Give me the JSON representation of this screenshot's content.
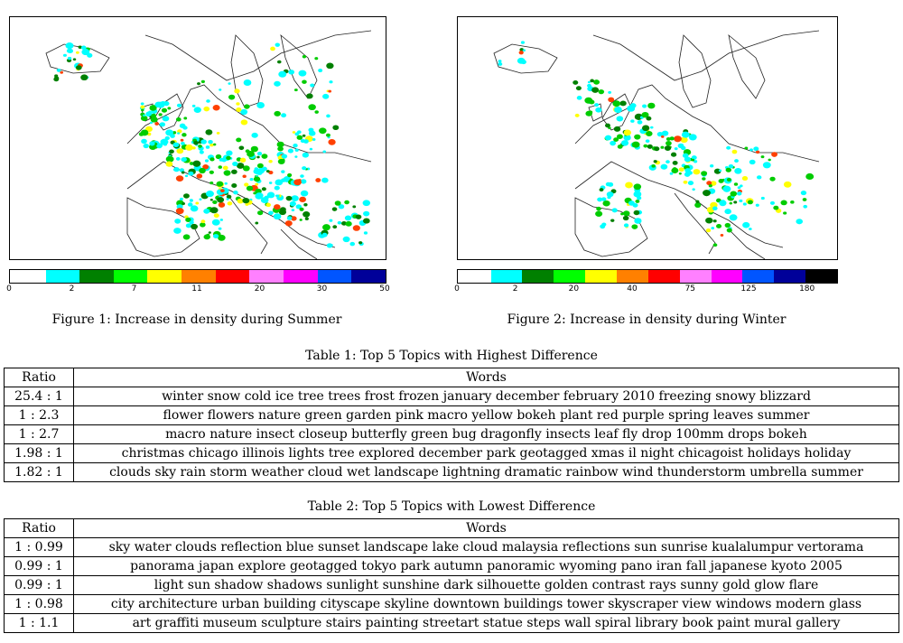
{
  "figures": [
    {
      "caption": "Figure 1: Increase in density during Summer",
      "colorbar": {
        "colors": [
          "#ffffff",
          "#00ffff",
          "#008000",
          "#00ff00",
          "#ffff00",
          "#ff8000",
          "#ff0000",
          "#ff80ff",
          "#ff00ff",
          "#0055ff",
          "#000099"
        ],
        "ticks": [
          "0",
          "2",
          "7",
          "11",
          "20",
          "30",
          "50"
        ]
      }
    },
    {
      "caption": "Figure 2: Increase in density during Winter",
      "colorbar": {
        "colors": [
          "#ffffff",
          "#00ffff",
          "#008000",
          "#00ff00",
          "#ffff00",
          "#ff8000",
          "#ff0000",
          "#ff80ff",
          "#ff00ff",
          "#0055ff",
          "#000099",
          "#000000"
        ],
        "ticks": [
          "0",
          "2",
          "20",
          "40",
          "75",
          "125",
          "180"
        ]
      }
    }
  ],
  "table1": {
    "caption": "Table 1: Top 5 Topics with Highest Difference",
    "headers": [
      "Ratio",
      "Words"
    ],
    "rows": [
      [
        "25.4 : 1",
        "winter snow cold ice tree trees frost frozen january december february 2010 freezing snowy blizzard"
      ],
      [
        "1 : 2.3",
        "flower flowers nature green garden pink macro yellow bokeh plant red purple spring leaves summer"
      ],
      [
        "1 : 2.7",
        "macro nature insect closeup butterfly green bug dragonfly insects leaf fly drop 100mm drops bokeh"
      ],
      [
        "1.98 : 1",
        "christmas chicago illinois lights tree explored december park geotagged xmas il night chicagoist holidays holiday"
      ],
      [
        "1.82 : 1",
        "clouds sky rain storm weather cloud wet landscape lightning dramatic rainbow wind thunderstorm umbrella summer"
      ]
    ]
  },
  "table2": {
    "caption": "Table 2: Top 5 Topics with Lowest Difference",
    "headers": [
      "Ratio",
      "Words"
    ],
    "rows": [
      [
        "1 : 0.99",
        "sky water clouds reflection blue sunset landscape lake cloud malaysia reflections sun sunrise kualalumpur vertorama"
      ],
      [
        "0.99 : 1",
        "panorama japan explore geotagged tokyo park autumn panoramic wyoming pano iran fall japanese kyoto 2005"
      ],
      [
        "0.99 : 1",
        "light sun shadow shadows sunlight sunshine dark silhouette golden contrast rays sunny gold glow flare"
      ],
      [
        "1 : 0.98",
        "city architecture urban building cityscape skyline downtown buildings tower skyscraper view windows modern glass"
      ],
      [
        "1 : 1.1",
        "art graffiti museum sculpture stairs painting streetart statue steps wall spiral library book paint mural gallery"
      ]
    ]
  }
}
